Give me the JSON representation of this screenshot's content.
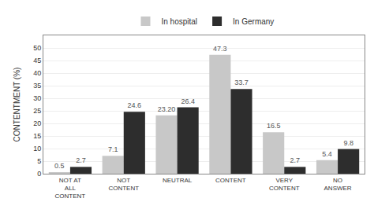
{
  "chart_data": {
    "type": "bar",
    "categories": [
      "NOT AT\nALL\nCONTENT",
      "NOT\nCONTENT",
      "NEUTRAL",
      "CONTENT",
      "VERY\nCONTENT",
      "NO\nANSWER"
    ],
    "series": [
      {
        "name": "In hospital",
        "color": "#c8c8c8",
        "values": [
          0.5,
          7.1,
          23.2,
          47.3,
          16.5,
          5.4
        ],
        "value_labels": [
          "0.5",
          "7.1",
          "23.20",
          "47.3",
          "16.5",
          "5.4"
        ]
      },
      {
        "name": "In Germany",
        "color": "#2d2d2d",
        "values": [
          2.7,
          24.6,
          26.4,
          33.7,
          2.7,
          9.8
        ]
      }
    ],
    "ylabel": "CONTENTMENT (%)",
    "ylim": [
      0,
      55
    ],
    "yticks": [
      0,
      5,
      10,
      15,
      20,
      25,
      30,
      35,
      40,
      45,
      50
    ],
    "grid": true,
    "legend": "top",
    "data_labels": true
  }
}
